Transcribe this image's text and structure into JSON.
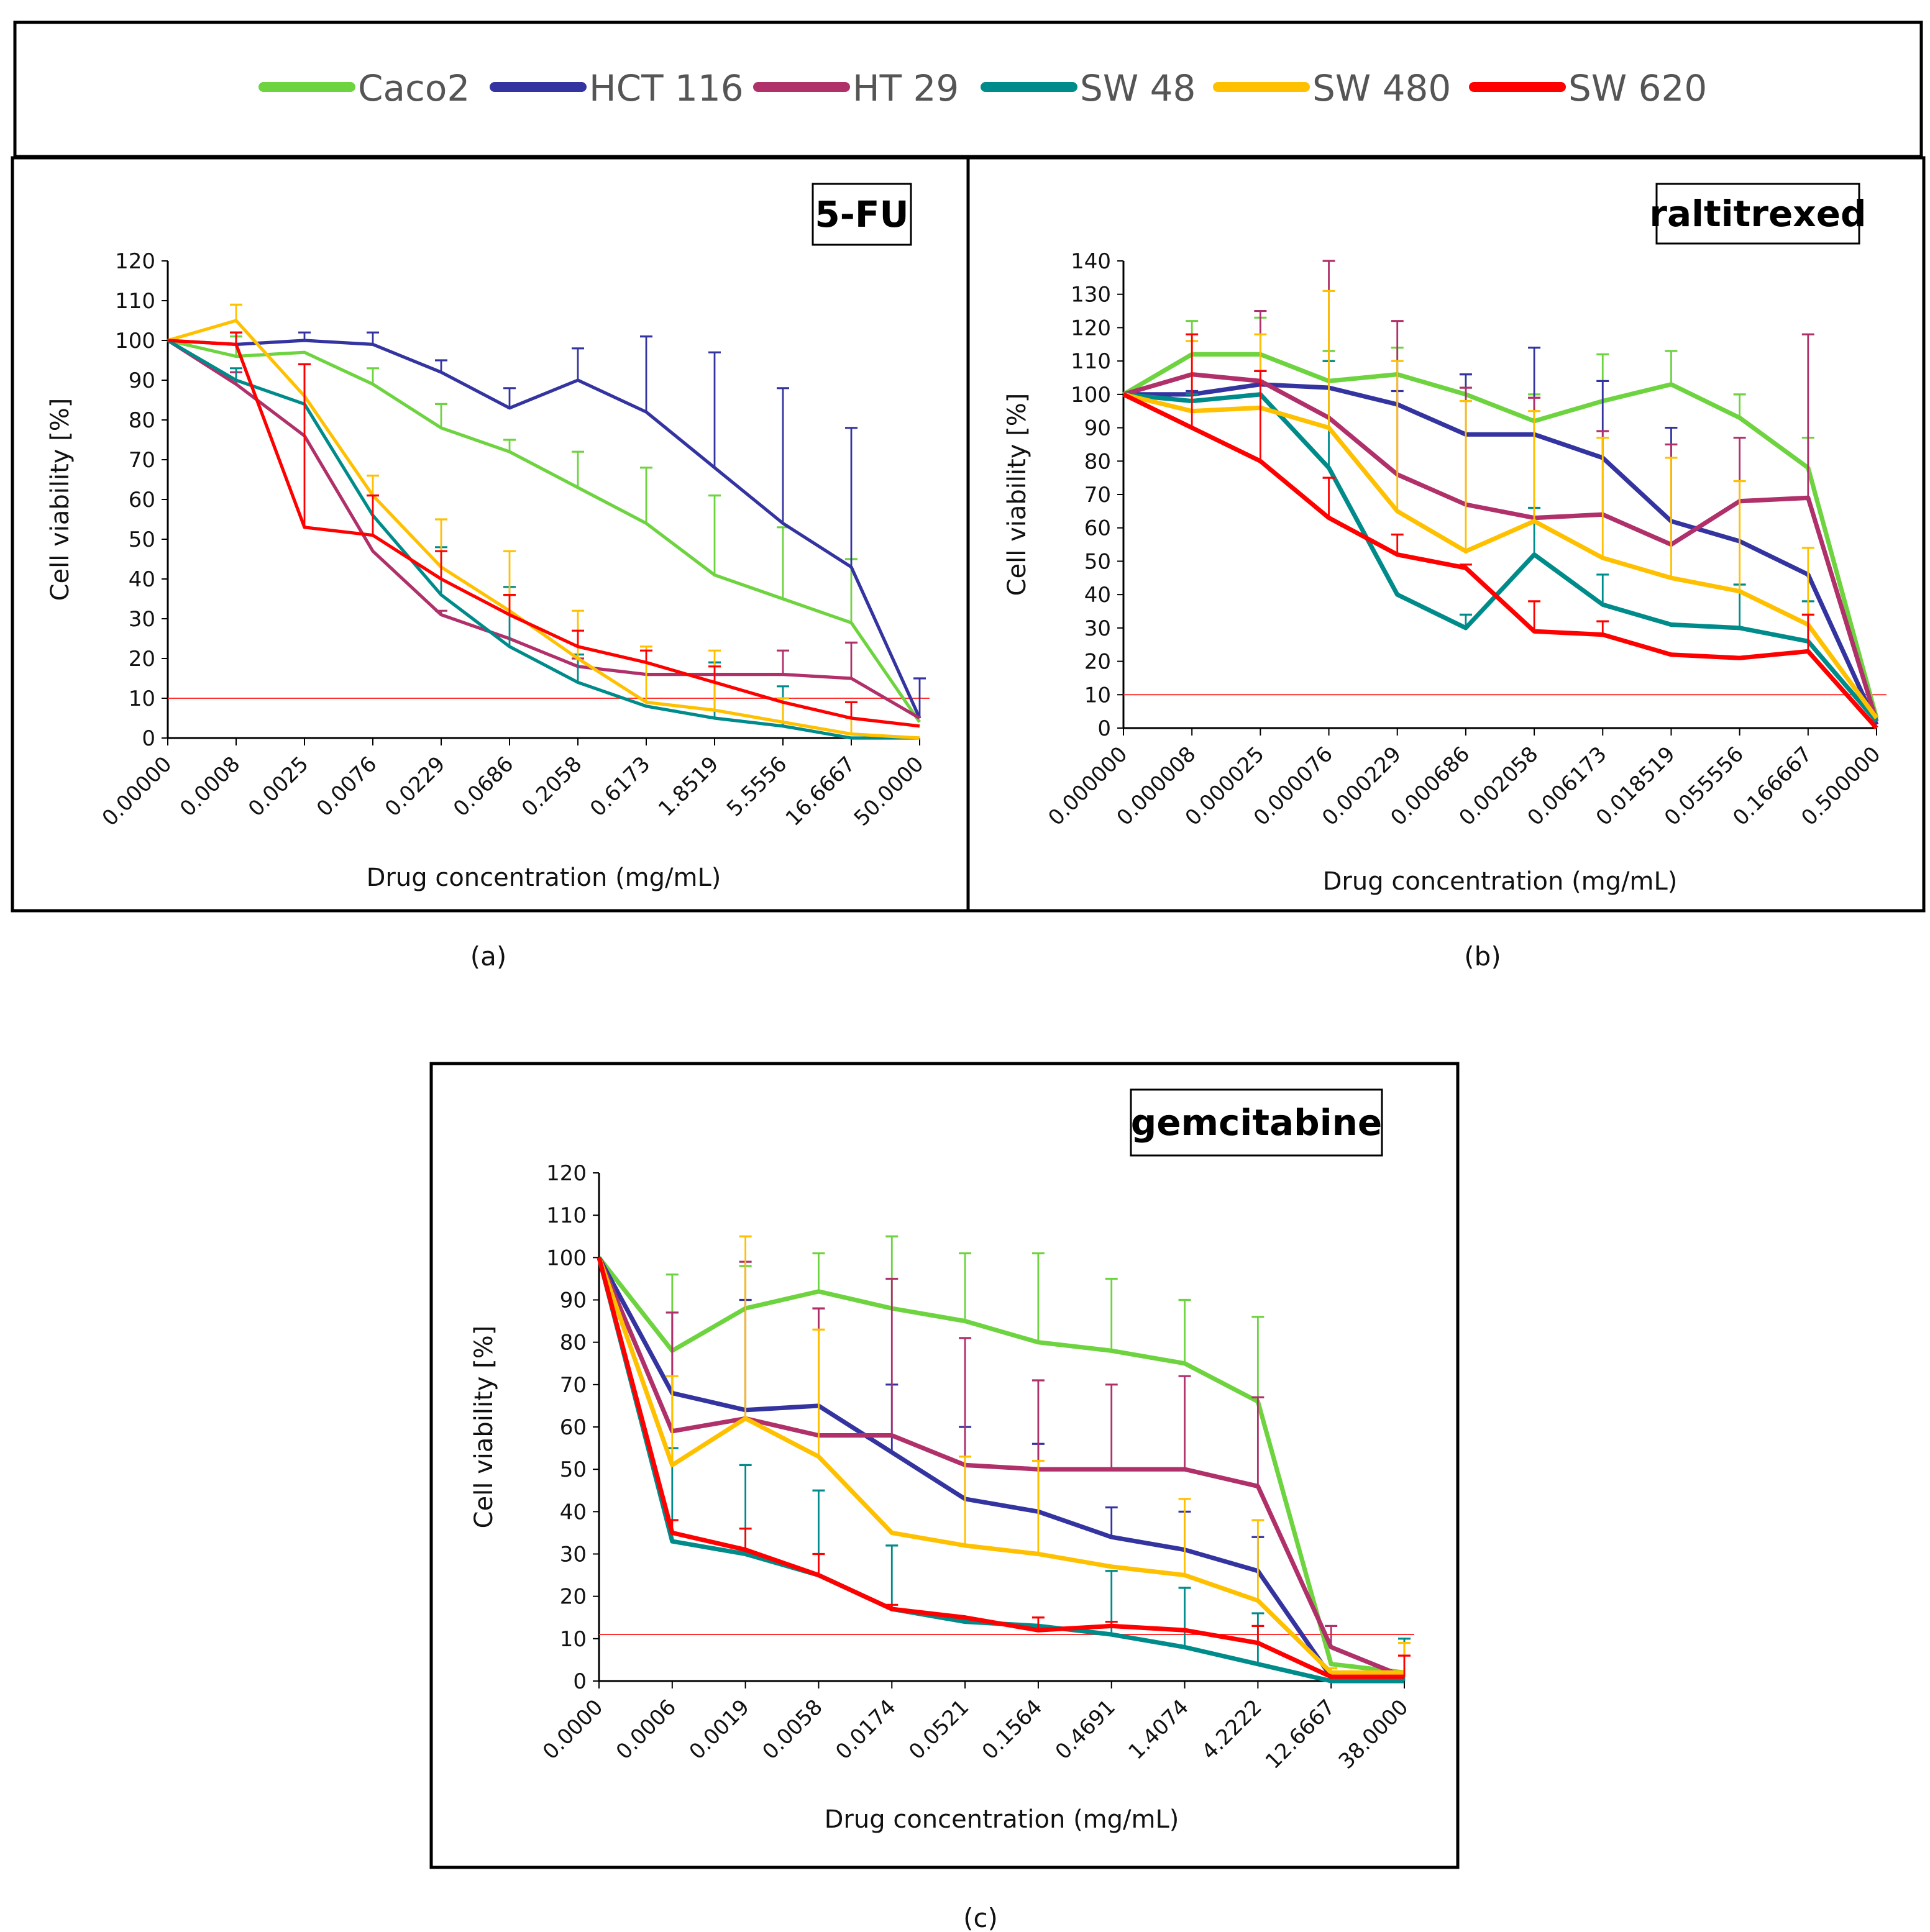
{
  "legend": [
    {
      "name": "Caco2",
      "color": "#6DD33F"
    },
    {
      "name": "HCT 116",
      "color": "#3434A0"
    },
    {
      "name": "HT 29",
      "color": "#B0306A"
    },
    {
      "name": "SW 48",
      "color": "#008B8B"
    },
    {
      "name": "SW 480",
      "color": "#FFC000"
    },
    {
      "name": "SW 620",
      "color": "#FF0000"
    }
  ],
  "chart_data": [
    {
      "type": "line",
      "caption": "(a)",
      "title": "5-FU",
      "xlabel": "Drug concentration (mg/mL)",
      "ylabel": "Cell viability [%]",
      "ylim": [
        0,
        120
      ],
      "ystep": 10,
      "threshold": 10,
      "categories": [
        "0.00000",
        "0.0008",
        "0.0025",
        "0.0076",
        "0.0229",
        "0.0686",
        "0.2058",
        "0.6173",
        "1.8519",
        "5.5556",
        "16.6667",
        "50.0000"
      ],
      "series": [
        {
          "name": "Caco2",
          "values": [
            100,
            96,
            97,
            89,
            78,
            72,
            63,
            54,
            41,
            35,
            29,
            4
          ],
          "err": [
            0,
            5,
            0,
            4,
            6,
            3,
            9,
            14,
            20,
            18,
            16,
            0
          ]
        },
        {
          "name": "HCT 116",
          "values": [
            100,
            99,
            100,
            99,
            92,
            83,
            90,
            82,
            68,
            54,
            43,
            5
          ],
          "err": [
            0,
            3,
            2,
            3,
            3,
            5,
            8,
            19,
            29,
            34,
            35,
            10
          ]
        },
        {
          "name": "HT 29",
          "values": [
            100,
            89,
            76,
            47,
            31,
            25,
            18,
            16,
            16,
            16,
            15,
            5
          ],
          "err": [
            0,
            3,
            0,
            0,
            1,
            0,
            2,
            0,
            3,
            6,
            9,
            0
          ]
        },
        {
          "name": "SW 48",
          "values": [
            100,
            90,
            84,
            56,
            36,
            23,
            14,
            8,
            5,
            3,
            0,
            0
          ],
          "err": [
            0,
            3,
            10,
            0,
            12,
            15,
            7,
            0,
            14,
            10,
            0,
            0
          ]
        },
        {
          "name": "SW 480",
          "values": [
            100,
            105,
            86,
            61,
            43,
            32,
            20,
            9,
            7,
            4,
            1,
            0
          ],
          "err": [
            0,
            4,
            0,
            5,
            12,
            15,
            12,
            14,
            15,
            6,
            4,
            0
          ]
        },
        {
          "name": "SW 620",
          "values": [
            100,
            99,
            53,
            51,
            40,
            31,
            23,
            19,
            14,
            9,
            5,
            3
          ],
          "err": [
            0,
            3,
            41,
            10,
            7,
            5,
            4,
            3,
            4,
            0,
            4,
            0
          ]
        }
      ]
    },
    {
      "type": "line",
      "caption": "(b)",
      "title": "raltitrexed",
      "xlabel": "Drug concentration (mg/mL)",
      "ylabel": "Cell viability [%]",
      "ylim": [
        0,
        140
      ],
      "ystep": 10,
      "threshold": 10,
      "categories": [
        "0.000000",
        "0.000008",
        "0.000025",
        "0.000076",
        "0.000229",
        "0.000686",
        "0.002058",
        "0.006173",
        "0.018519",
        "0.055556",
        "0.166667",
        "0.500000"
      ],
      "series": [
        {
          "name": "Caco2",
          "values": [
            100,
            112,
            112,
            104,
            106,
            100,
            92,
            98,
            103,
            93,
            78,
            3
          ],
          "err": [
            0,
            10,
            11,
            9,
            8,
            6,
            8,
            14,
            10,
            7,
            9,
            0
          ]
        },
        {
          "name": "HCT 116",
          "values": [
            100,
            100,
            103,
            102,
            97,
            88,
            88,
            81,
            62,
            56,
            46,
            1
          ],
          "err": [
            0,
            1,
            4,
            8,
            4,
            18,
            26,
            23,
            28,
            0,
            0,
            0
          ]
        },
        {
          "name": "HT 29",
          "values": [
            100,
            106,
            104,
            93,
            76,
            67,
            63,
            64,
            55,
            68,
            69,
            2
          ],
          "err": [
            0,
            0,
            21,
            47,
            46,
            35,
            36,
            25,
            30,
            19,
            49,
            0
          ]
        },
        {
          "name": "SW 48",
          "values": [
            100,
            98,
            100,
            78,
            40,
            30,
            52,
            37,
            31,
            30,
            26,
            2
          ],
          "err": [
            0,
            2,
            7,
            32,
            0,
            4,
            14,
            9,
            0,
            13,
            12,
            0
          ]
        },
        {
          "name": "SW 480",
          "values": [
            100,
            95,
            96,
            90,
            65,
            53,
            62,
            51,
            45,
            41,
            31,
            3
          ],
          "err": [
            0,
            21,
            22,
            41,
            45,
            45,
            33,
            36,
            36,
            33,
            23,
            0
          ]
        },
        {
          "name": "SW 620",
          "values": [
            100,
            90,
            80,
            63,
            52,
            48,
            29,
            28,
            22,
            21,
            23,
            0
          ],
          "err": [
            0,
            28,
            27,
            12,
            6,
            1,
            9,
            4,
            0,
            0,
            11,
            0
          ]
        }
      ]
    },
    {
      "type": "line",
      "caption": "(c)",
      "title": "gemcitabine",
      "xlabel": "Drug concentration (mg/mL)",
      "ylabel": "Cell viability [%]",
      "ylim": [
        0,
        120
      ],
      "ystep": 10,
      "threshold": 11,
      "categories": [
        "0.0000",
        "0.0006",
        "0.0019",
        "0.0058",
        "0.0174",
        "0.0521",
        "0.1564",
        "0.4691",
        "1.4074",
        "4.2222",
        "12.6667",
        "38.0000"
      ],
      "series": [
        {
          "name": "Caco2",
          "values": [
            100,
            78,
            88,
            92,
            88,
            85,
            80,
            78,
            75,
            66,
            4,
            2
          ],
          "err": [
            0,
            18,
            10,
            9,
            17,
            16,
            21,
            17,
            15,
            20,
            0,
            8
          ]
        },
        {
          "name": "HCT 116",
          "values": [
            100,
            68,
            64,
            65,
            54,
            43,
            40,
            34,
            31,
            26,
            1,
            1
          ],
          "err": [
            0,
            19,
            26,
            23,
            16,
            17,
            16,
            7,
            9,
            8,
            0,
            0
          ]
        },
        {
          "name": "HT 29",
          "values": [
            100,
            59,
            62,
            58,
            58,
            51,
            50,
            50,
            50,
            46,
            8,
            1
          ],
          "err": [
            0,
            28,
            37,
            30,
            37,
            30,
            21,
            20,
            22,
            21,
            5,
            0
          ]
        },
        {
          "name": "SW 48",
          "values": [
            100,
            33,
            30,
            25,
            17,
            14,
            13,
            11,
            8,
            4,
            0,
            0
          ],
          "err": [
            0,
            22,
            21,
            20,
            15,
            0,
            0,
            15,
            14,
            12,
            0,
            10
          ]
        },
        {
          "name": "SW 480",
          "values": [
            100,
            51,
            62,
            53,
            35,
            32,
            30,
            27,
            25,
            19,
            2,
            2
          ],
          "err": [
            0,
            21,
            43,
            30,
            0,
            21,
            22,
            0,
            18,
            19,
            1,
            7
          ]
        },
        {
          "name": "SW 620",
          "values": [
            100,
            35,
            31,
            25,
            17,
            15,
            12,
            13,
            12,
            9,
            1,
            1
          ],
          "err": [
            0,
            3,
            5,
            5,
            1,
            0,
            3,
            1,
            0,
            4,
            0,
            5
          ]
        }
      ]
    }
  ]
}
